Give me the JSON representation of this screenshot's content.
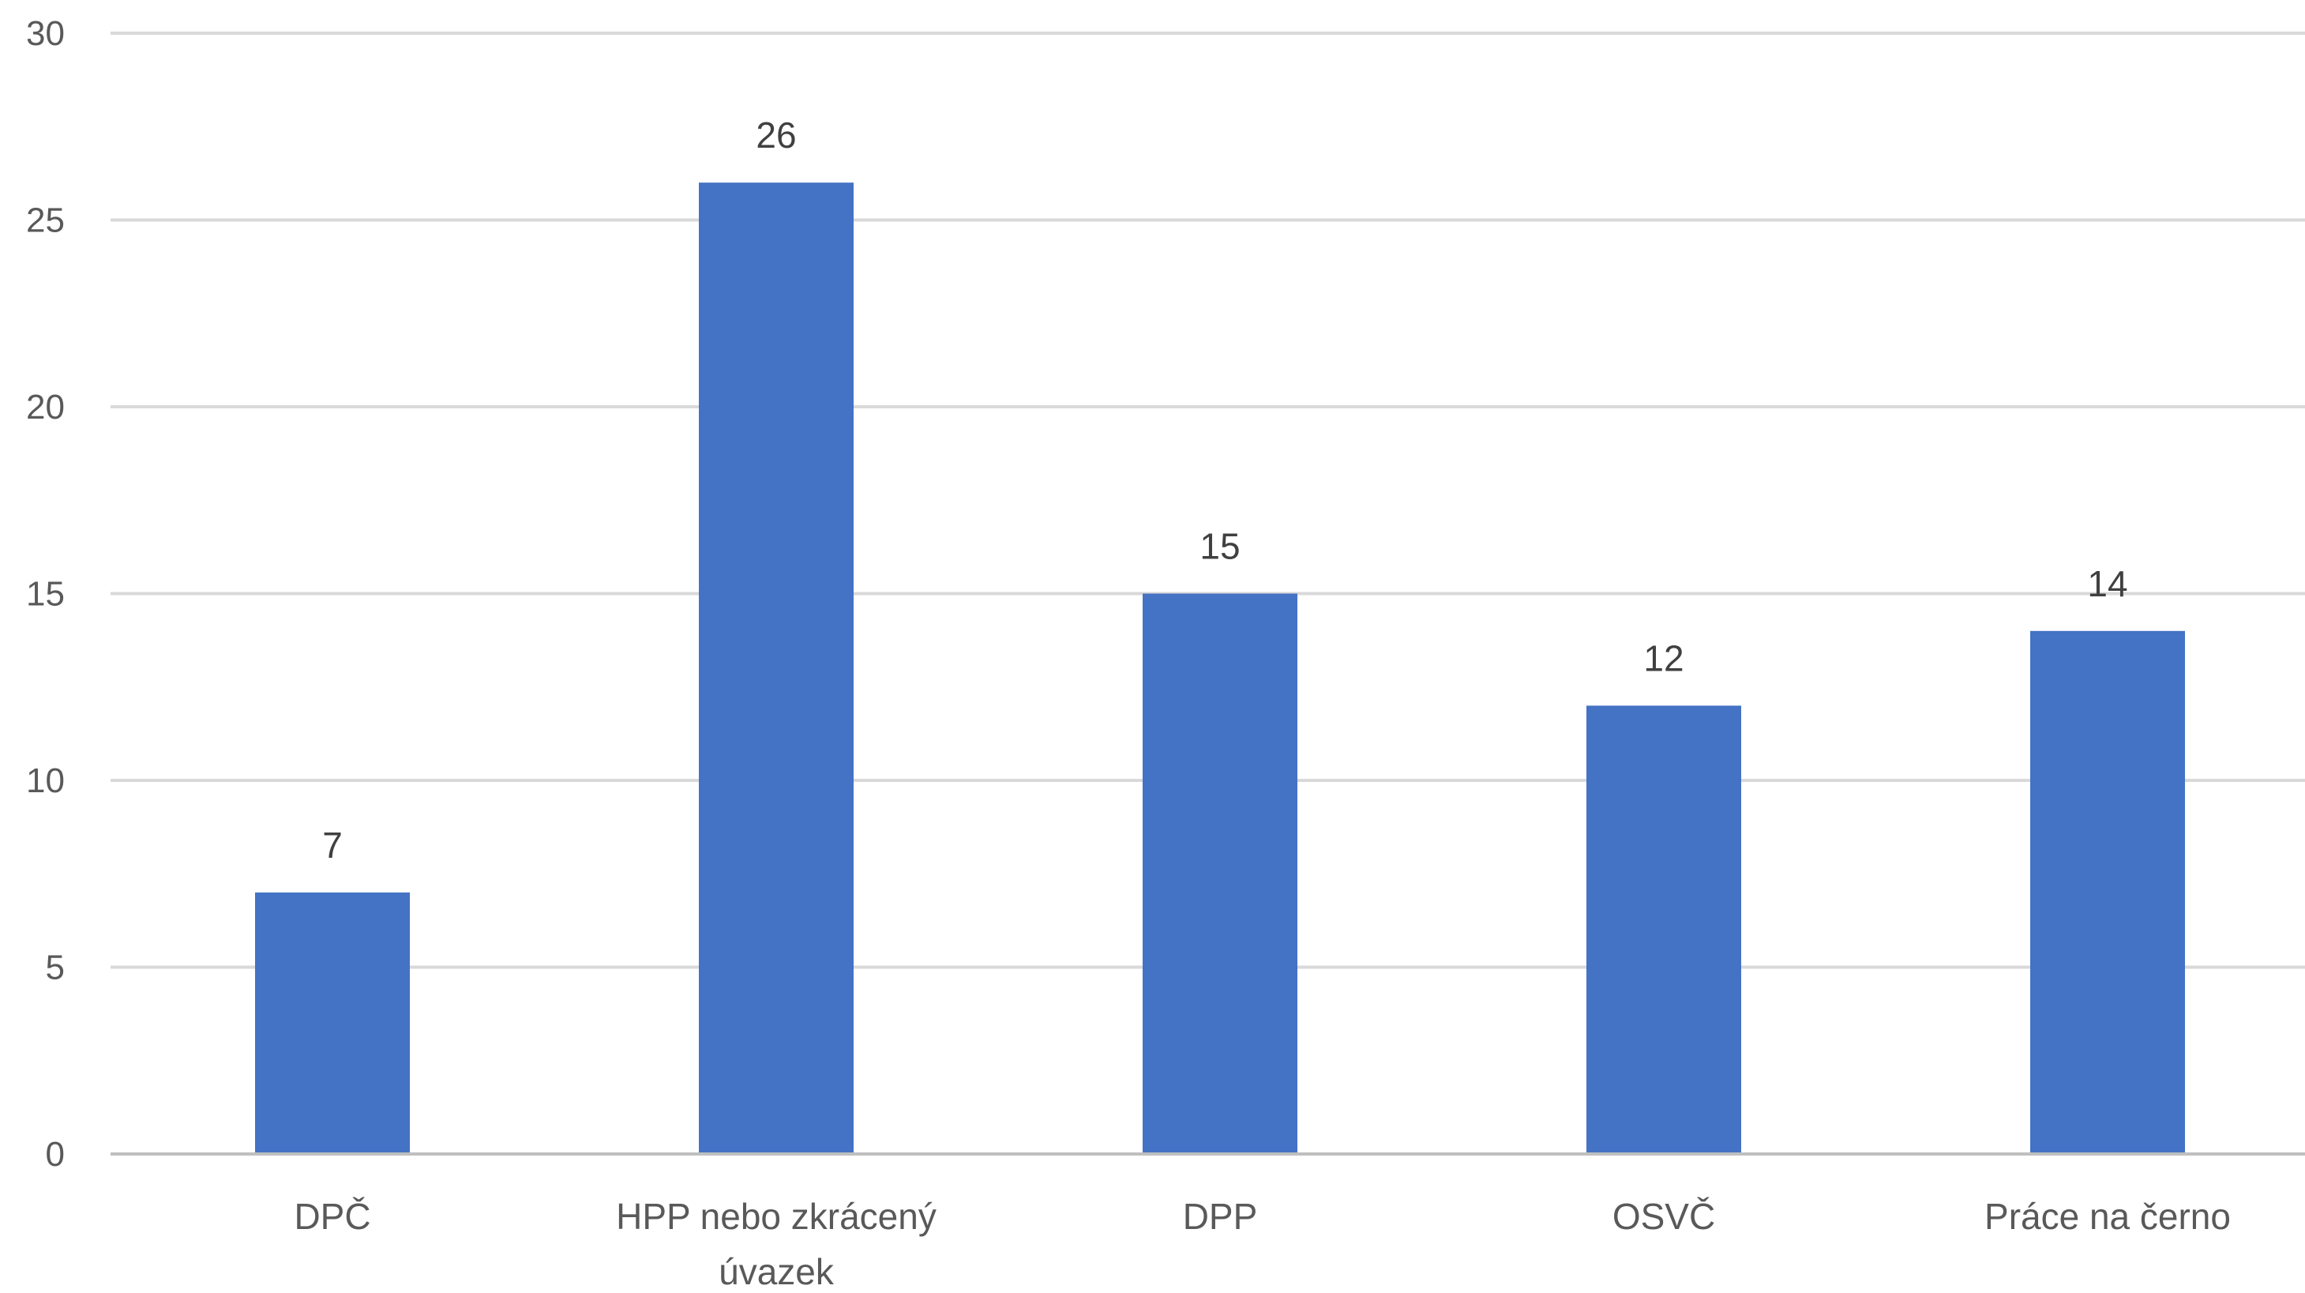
{
  "chart_data": {
    "type": "bar",
    "title": "",
    "xlabel": "",
    "ylabel": "",
    "categories": [
      [
        "DPČ"
      ],
      [
        "HPP nebo zkrácený",
        "úvazek"
      ],
      [
        "DPP"
      ],
      [
        "OSVČ"
      ],
      [
        "Práce na černo"
      ]
    ],
    "values": [
      7,
      26,
      15,
      12,
      14
    ],
    "ylim": [
      0,
      30
    ],
    "yticks": [
      0,
      5,
      10,
      15,
      20,
      25,
      30
    ],
    "grid": true,
    "legend": "none",
    "data_labels": true,
    "colors": {
      "bar": "#4472C4",
      "grid": "#D9D9D9",
      "axis": "#BFBFBF"
    }
  }
}
